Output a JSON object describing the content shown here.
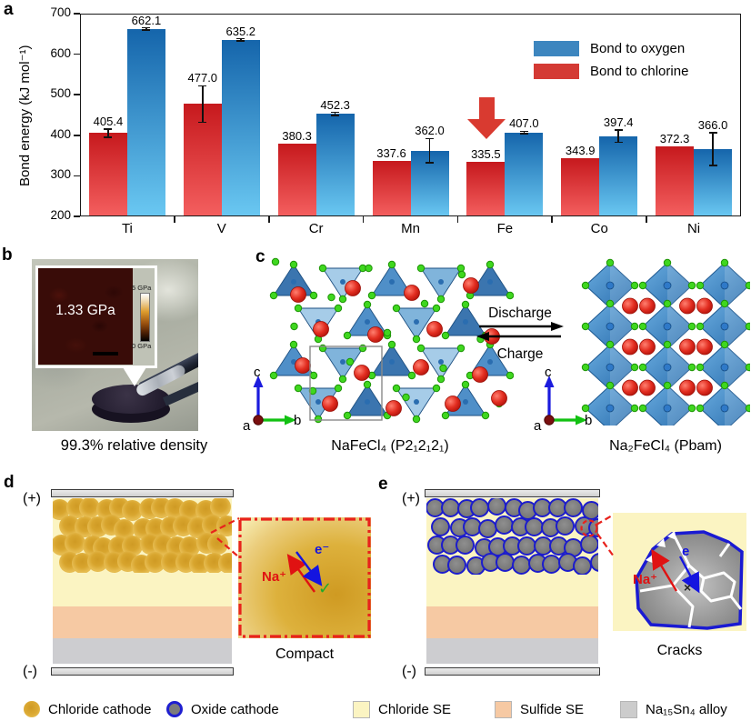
{
  "panels": {
    "a": "a",
    "b": "b",
    "c": "c",
    "d": "d",
    "e": "e"
  },
  "chart_data": {
    "type": "bar",
    "title": "",
    "ylabel": "Bond energy (kJ mol⁻¹)",
    "xlabel": "",
    "categories": [
      "Ti",
      "V",
      "Cr",
      "Mn",
      "Fe",
      "Co",
      "Ni"
    ],
    "series": [
      {
        "name": "Bond to oxygen",
        "color_top": "#1565ab",
        "color_bottom": "#6ac8f2",
        "legend_color": "#3d86bf",
        "values": [
          662.1,
          635.2,
          452.3,
          362.0,
          407.0,
          397.4,
          366.0
        ],
        "errors": [
          3,
          3,
          4,
          30,
          3,
          15,
          40
        ]
      },
      {
        "name": "Bond to chlorine",
        "color_top": "#c6191d",
        "color_bottom": "#f45f5f",
        "legend_color": "#d43a34",
        "values": [
          405.4,
          477.0,
          380.3,
          337.6,
          335.5,
          343.9,
          372.3
        ],
        "errors": [
          10,
          45,
          0,
          0,
          0,
          0,
          0
        ]
      }
    ],
    "ylim": [
      200,
      700
    ],
    "yticks": [
      200,
      300,
      400,
      500,
      600,
      700
    ],
    "grid": false,
    "legend_position": "top-right",
    "annotation": {
      "type": "arrow-down",
      "color": "#d93a30",
      "target_category": "Fe",
      "target_series": "Bond to chlorine"
    }
  },
  "panel_b": {
    "inset_value": "1.33 GPa",
    "colorbar_top": "5 GPa",
    "colorbar_bottom": "0 GPa",
    "caption": "99.3% relative density"
  },
  "panel_c": {
    "left_formula": "NaFeCl₄ (P2₁2₁2₁)",
    "right_formula": "Na₂FeCl₄ (Pbam)",
    "forward_label": "Discharge",
    "reverse_label": "Charge",
    "axes": {
      "up": "c",
      "right": "b",
      "origin": "a"
    }
  },
  "panel_d": {
    "positive_label": "(+)",
    "negative_label": "(-)",
    "ion_label": "Na⁺",
    "electron_label": "e⁻",
    "check_mark": "✓",
    "caption": "Compact"
  },
  "panel_e": {
    "positive_label": "(+)",
    "negative_label": "(-)",
    "ion_label": "Na⁺",
    "electron_label": "e",
    "cross_mark": "×",
    "caption": "Cracks"
  },
  "legend": {
    "items": [
      {
        "label": "Chloride cathode",
        "swatch": "gold-circle",
        "color": "#ddab35"
      },
      {
        "label": "Oxide cathode",
        "swatch": "gray-circle-blue-ring",
        "color": "#7c7c7c",
        "ring_color": "#1f1fd0"
      },
      {
        "label": "Chloride SE",
        "swatch": "square",
        "color": "#fbf4c2"
      },
      {
        "label": "Sulfide SE",
        "swatch": "square",
        "color": "#f6c9a3"
      },
      {
        "label": "Na₁₅Sn₄ alloy",
        "swatch": "square",
        "color": "#cccccc"
      }
    ]
  }
}
